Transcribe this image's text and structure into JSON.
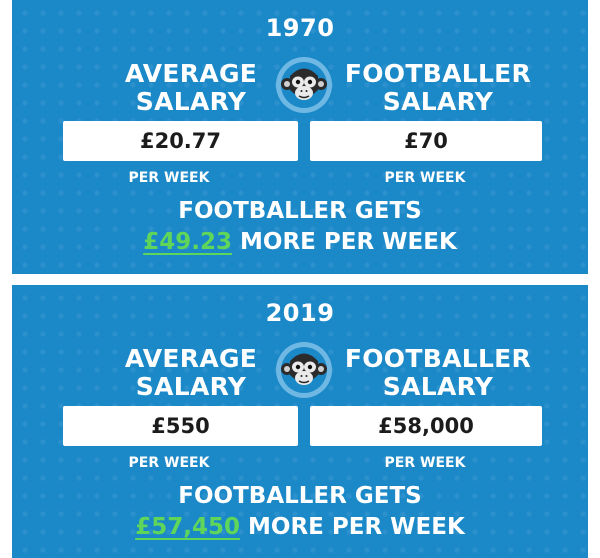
{
  "colors": {
    "panel_bg": "#1b88c8",
    "box_bg": "#ffffff",
    "difference_green": "#5fd65a",
    "text": "#ffffff"
  },
  "logo_icon": "monkey-face-icon",
  "panels": [
    {
      "year": "1970",
      "average_label_line1": "AVERAGE",
      "average_label_line2": "SALARY",
      "footballer_label_line1": "FOOTBALLER",
      "footballer_label_line2": "SALARY",
      "average_value": "£20.77",
      "footballer_value": "£70",
      "per_week_left": "PER WEEK",
      "per_week_right": "PER WEEK",
      "gets_text": "FOOTBALLER GETS",
      "difference": "£49.23",
      "more_text": "MORE PER WEEK"
    },
    {
      "year": "2019",
      "average_label_line1": "AVERAGE",
      "average_label_line2": "SALARY",
      "footballer_label_line1": "FOOTBALLER",
      "footballer_label_line2": "SALARY",
      "average_value": "£550",
      "footballer_value": "£58,000",
      "per_week_left": "PER WEEK",
      "per_week_right": "PER WEEK",
      "gets_text": "FOOTBALLER GETS",
      "difference": "£57,450",
      "more_text": "MORE PER WEEK"
    }
  ]
}
